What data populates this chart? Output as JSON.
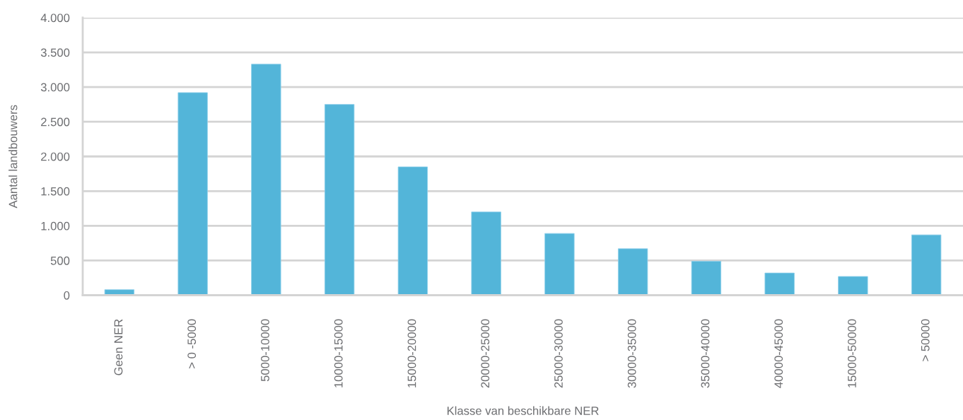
{
  "chart_data": {
    "type": "bar",
    "xlabel": "Klasse van beschikbare NER",
    "ylabel": "Aantal landbouwers",
    "categories": [
      "Geen NER",
      "> 0 -5000",
      "5000-10000",
      "10000-15000",
      "15000-20000",
      "20000-25000",
      "25000-30000",
      "30000-35000",
      "35000-40000",
      "40000-45000",
      "15000-50000",
      "> 50000"
    ],
    "values": [
      80,
      2920,
      3330,
      2750,
      1850,
      1200,
      890,
      670,
      490,
      320,
      270,
      870
    ],
    "color": "#53b5d9",
    "ylim": [
      0,
      4000
    ],
    "yticks": [
      0,
      {
        "value": 500,
        "label": "500"
      },
      {
        "value": 1000,
        "label": "1.000"
      },
      {
        "value": 1500,
        "label": "1.500"
      },
      {
        "value": 2000,
        "label": "2.000"
      },
      {
        "value": 2500,
        "label": "2.500"
      },
      {
        "value": 3000,
        "label": "3.000"
      },
      {
        "value": 3500,
        "label": "3.500"
      },
      {
        "value": 4000,
        "label": "4.000"
      }
    ],
    "grid": "y"
  }
}
